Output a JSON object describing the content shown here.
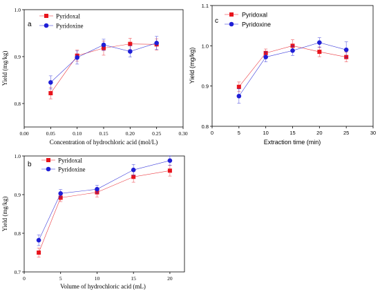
{
  "colors": {
    "pyridoxal": "#e8141c",
    "pyridoxine": "#1f1fd6",
    "axis": "#000000"
  },
  "chart_data": [
    {
      "type": "line",
      "panel_label": "a",
      "xlabel": "Concentration of hydrochloric acid (mol/L)",
      "ylabel": "Yield (mg/kg)",
      "xlim": [
        0.0,
        0.3
      ],
      "ylim": [
        0.75,
        1.0
      ],
      "x_ticks": [
        "0.00",
        "0.05",
        "0.10",
        "0.15",
        "0.20",
        "0.25",
        "0.30"
      ],
      "y_ticks": [
        "0.8",
        "0.9",
        "1.0"
      ],
      "legend": "top-left",
      "x": [
        0.05,
        0.1,
        0.15,
        0.2,
        0.25
      ],
      "series": [
        {
          "name": "Pyridoxal",
          "values": [
            0.822,
            0.902,
            0.918,
            0.927,
            0.926
          ],
          "errors": [
            0.012,
            0.012,
            0.015,
            0.012,
            0.012
          ]
        },
        {
          "name": "Pyridoxine",
          "values": [
            0.845,
            0.898,
            0.925,
            0.911,
            0.929
          ],
          "errors": [
            0.014,
            0.014,
            0.012,
            0.012,
            0.014
          ]
        }
      ]
    },
    {
      "type": "line",
      "panel_label": "b",
      "xlabel": "Volume of hydrochloric acid (mL)",
      "ylabel": "Yield (mg/kg)",
      "xlim": [
        0,
        22
      ],
      "ylim": [
        0.7,
        1.0
      ],
      "x_ticks": [
        "0",
        "5",
        "10",
        "15",
        "20"
      ],
      "y_ticks": [
        "0.7",
        "0.8",
        "0.9",
        "1.0"
      ],
      "legend": "top-left",
      "x": [
        2,
        5,
        10,
        15,
        20
      ],
      "series": [
        {
          "name": "Pyridoxal",
          "values": [
            0.75,
            0.892,
            0.906,
            0.946,
            0.962
          ],
          "errors": [
            0.012,
            0.01,
            0.012,
            0.014,
            0.014
          ]
        },
        {
          "name": "Pyridoxine",
          "values": [
            0.782,
            0.903,
            0.914,
            0.964,
            0.988
          ],
          "errors": [
            0.014,
            0.01,
            0.01,
            0.014,
            0.012
          ]
        }
      ]
    },
    {
      "type": "line",
      "panel_label": "c",
      "xlabel": "Extraction time (min)",
      "ylabel": "Yield (mg/kg)",
      "xlim": [
        0,
        30
      ],
      "ylim": [
        0.8,
        1.1
      ],
      "x_ticks": [
        "0",
        "5",
        "10",
        "15",
        "20",
        "25",
        "30"
      ],
      "y_ticks": [
        "0.8",
        "0.9",
        "1.0",
        "1.1"
      ],
      "legend": "top-left",
      "x": [
        5,
        10,
        15,
        20,
        25
      ],
      "series": [
        {
          "name": "Pyridoxal",
          "values": [
            0.898,
            0.982,
            1.0,
            0.985,
            0.972
          ],
          "errors": [
            0.012,
            0.01,
            0.015,
            0.012,
            0.012
          ]
        },
        {
          "name": "Pyridoxine",
          "values": [
            0.875,
            0.972,
            0.988,
            1.008,
            0.99
          ],
          "errors": [
            0.018,
            0.012,
            0.012,
            0.012,
            0.02
          ]
        }
      ]
    }
  ]
}
